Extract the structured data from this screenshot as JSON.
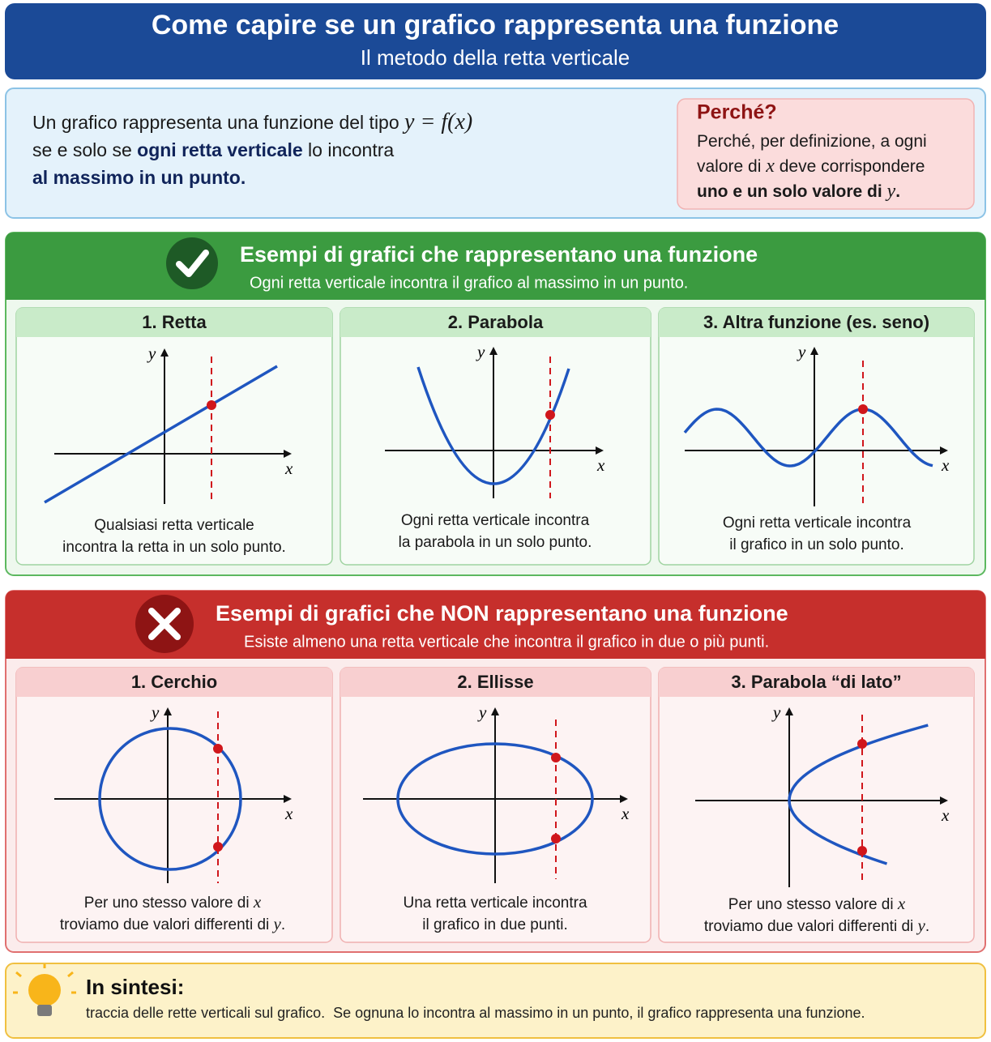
{
  "header": {
    "title": "Come capire se un grafico rappresenta una funzione",
    "subtitle": "Il metodo della retta verticale"
  },
  "intro": {
    "lines": [
      [
        "Un grafico rappresenta una funzione del tipo ",
        "y = f(x)"
      ],
      [
        "se e solo se ",
        "ogni retta verticale",
        " lo incontra"
      ],
      [
        "al massimo in un punto."
      ]
    ]
  },
  "why": {
    "title": "Perché?",
    "lines": [
      [
        "Perché, per definizione, a ogni"
      ],
      [
        "valore di ",
        "x",
        " deve corrispondere"
      ],
      [
        "uno e un solo valore di ",
        "y",
        "."
      ]
    ]
  },
  "good": {
    "title": "Esempi di grafici che rappresentano una funzione",
    "subtitle": "Ogni retta verticale incontra il grafico al massimo in un punto.",
    "panels": [
      {
        "title": "1. Retta",
        "x_label": "x",
        "y_label": "y",
        "caption": [
          [
            "Qualsiasi retta verticale"
          ],
          [
            "incontra la retta in un solo punto."
          ]
        ]
      },
      {
        "title": "2. Parabola",
        "x_label": "x",
        "y_label": "y",
        "caption": [
          [
            "Ogni retta verticale incontra"
          ],
          [
            "la parabola in un solo punto."
          ]
        ]
      },
      {
        "title": "3. Altra funzione (es. seno)",
        "x_label": "x",
        "y_label": "y",
        "caption": [
          [
            "Ogni retta verticale incontra"
          ],
          [
            "il grafico in un solo punto."
          ]
        ]
      }
    ]
  },
  "bad": {
    "title": "Esempi di grafici che NON rappresentano una funzione",
    "subtitle": "Esiste almeno una retta verticale che incontra il grafico in due o più punti.",
    "panels": [
      {
        "title": "1. Cerchio",
        "x_label": "x",
        "y_label": "y",
        "caption": [
          [
            "Per uno stesso valore di ",
            "x"
          ],
          [
            "troviamo due valori differenti di ",
            "y",
            "."
          ]
        ]
      },
      {
        "title": "2. Ellisse",
        "x_label": "x",
        "y_label": "y",
        "caption": [
          [
            "Una retta verticale incontra"
          ],
          [
            "il grafico in due punti."
          ]
        ]
      },
      {
        "title": "3. Parabola “di lato”",
        "x_label": "x",
        "y_label": "y",
        "caption": [
          [
            "Per uno stesso valore di ",
            "x"
          ],
          [
            "troviamo due valori differenti di ",
            "y",
            "."
          ]
        ]
      }
    ]
  },
  "summary": {
    "title": "In sintesi:",
    "text": "traccia delle rette verticali sul grafico.  Se ognuna lo incontra al massimo in un punto, il grafico rappresenta una funzione."
  }
}
